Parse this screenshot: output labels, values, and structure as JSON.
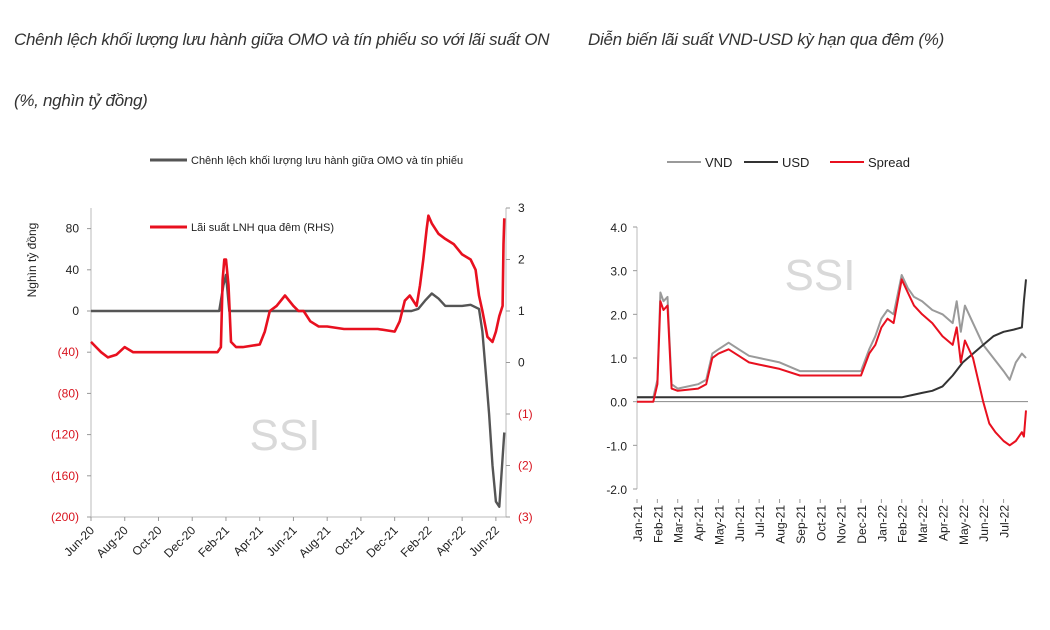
{
  "chart_data": [
    {
      "type": "line",
      "title": "Chênh lệch khối lượng lưu hành giữa OMO và tín phiếu so với lãi suất ON",
      "subtitle": "(%, nghìn tỷ đồng)",
      "ylabel": "Nghìn tỷ đồng",
      "ylim": [
        -200,
        100
      ],
      "y_ticks": [
        "80",
        "40",
        "0",
        "(40)",
        "(80)",
        "(120)",
        "(160)",
        "(200)"
      ],
      "y_tick_values": [
        80,
        40,
        0,
        -40,
        -80,
        -120,
        -160,
        -200
      ],
      "y2lim": [
        -3,
        3
      ],
      "y2_ticks": [
        "3",
        "2",
        "1",
        "0",
        "(1)",
        "(2)",
        "(3)"
      ],
      "y2_tick_values": [
        3,
        2,
        1,
        0,
        -1,
        -2,
        -3
      ],
      "x_ticks": [
        "Jun-20",
        "Aug-20",
        "Oct-20",
        "Dec-20",
        "Feb-21",
        "Apr-21",
        "Jun-21",
        "Aug-21",
        "Oct-21",
        "Dec-21",
        "Feb-22",
        "Apr-22",
        "Jun-22"
      ],
      "x": [
        0,
        2,
        4,
        6,
        8,
        10,
        12,
        14,
        16,
        18,
        20,
        22,
        24
      ],
      "watermark": "SSI",
      "series": [
        {
          "name": "Chênh lệch khối lượng lưu hành giữa OMO và tín phiếu",
          "axis": "left",
          "color": "#555555",
          "x": [
            0,
            7.6,
            7.85,
            8.0,
            8.2,
            8.5,
            9,
            10,
            11,
            12,
            13,
            14,
            15,
            16,
            17,
            18,
            18.5,
            19,
            19.4,
            19.8,
            20.2,
            20.6,
            21,
            21.5,
            22,
            22.5,
            23,
            23.2,
            23.4,
            23.6,
            23.8,
            24.0,
            24.2,
            24.5
          ],
          "values": [
            0,
            0,
            25,
            35,
            0,
            0,
            0,
            0,
            0,
            0,
            0,
            0,
            0,
            0,
            0,
            0,
            0,
            0,
            2,
            10,
            17,
            12,
            5,
            5,
            5,
            6,
            2,
            -20,
            -60,
            -100,
            -150,
            -185,
            -190,
            -118
          ]
        },
        {
          "name": "Lãi suất LNH qua đêm (RHS)",
          "axis": "right",
          "color": "#e8101f",
          "x": [
            0,
            0.3,
            0.6,
            1,
            1.5,
            2,
            2.5,
            3,
            4,
            5,
            6,
            7,
            7.5,
            7.7,
            7.8,
            7.9,
            8.0,
            8.15,
            8.3,
            8.6,
            9,
            10,
            10.3,
            10.6,
            11,
            11.5,
            12,
            12.3,
            12.6,
            13,
            13.5,
            14,
            15,
            16,
            17,
            18,
            18.3,
            18.6,
            18.9,
            19.3,
            19.5,
            19.7,
            19.9,
            20,
            20.2,
            20.6,
            21,
            21.5,
            22,
            22.5,
            22.8,
            23,
            23.2,
            23.5,
            23.8,
            24,
            24.2,
            24.4,
            24.45,
            24.5
          ],
          "values": [
            0.4,
            0.3,
            0.2,
            0.1,
            0.15,
            0.3,
            0.2,
            0.2,
            0.2,
            0.2,
            0.2,
            0.2,
            0.2,
            0.3,
            1.6,
            2.0,
            2.0,
            1.5,
            0.4,
            0.3,
            0.3,
            0.35,
            0.6,
            1.0,
            1.1,
            1.3,
            1.1,
            1.0,
            1.0,
            0.8,
            0.7,
            0.7,
            0.65,
            0.65,
            0.65,
            0.6,
            0.8,
            1.2,
            1.3,
            1.1,
            1.5,
            2.0,
            2.6,
            2.85,
            2.7,
            2.5,
            2.4,
            2.3,
            2.1,
            2.0,
            1.8,
            1.3,
            1.0,
            0.5,
            0.4,
            0.6,
            0.9,
            1.1,
            2.3,
            2.8
          ]
        }
      ]
    },
    {
      "type": "line",
      "title": "Diễn biến lãi suất VND-USD kỳ hạn qua đêm (%)",
      "ylim": [
        -2.0,
        4.0
      ],
      "y_ticks": [
        "4.0",
        "3.0",
        "2.0",
        "1.0",
        "0.0",
        "-1.0",
        "-2.0"
      ],
      "y_tick_values": [
        4,
        3,
        2,
        1,
        0,
        -1,
        -2
      ],
      "x_ticks": [
        "Jan-21",
        "Feb-21",
        "Mar-21",
        "Apr-21",
        "May-21",
        "Jun-21",
        "Jul-21",
        "Aug-21",
        "Sep-21",
        "Oct-21",
        "Nov-21",
        "Dec-21",
        "Jan-22",
        "Feb-22",
        "Mar-22",
        "Apr-22",
        "May-22",
        "Jun-22",
        "Jul-22"
      ],
      "x": [
        0,
        1,
        2,
        3,
        4,
        5,
        6,
        7,
        8,
        9,
        10,
        11,
        12,
        13,
        14,
        15,
        16,
        17,
        18
      ],
      "watermark": "SSI",
      "legend": [
        "VND",
        "USD",
        "Spread"
      ],
      "series": [
        {
          "name": "VND",
          "color": "#9a9a9a",
          "x": [
            0,
            0.8,
            1.0,
            1.15,
            1.3,
            1.5,
            1.7,
            2,
            3,
            3.4,
            3.7,
            4,
            4.5,
            5,
            5.5,
            6,
            7,
            8,
            9,
            10,
            11,
            11.4,
            11.7,
            12,
            12.3,
            12.6,
            13,
            13.3,
            13.6,
            14,
            14.5,
            15,
            15.5,
            15.7,
            15.9,
            16.1,
            16.5,
            17,
            17.5,
            18,
            18.3,
            18.6,
            18.9,
            19.1
          ],
          "values": [
            0.1,
            0.1,
            0.5,
            2.5,
            2.3,
            2.4,
            0.4,
            0.3,
            0.4,
            0.5,
            1.1,
            1.2,
            1.35,
            1.2,
            1.05,
            1.0,
            0.9,
            0.7,
            0.7,
            0.7,
            0.7,
            1.2,
            1.5,
            1.9,
            2.1,
            2.0,
            2.9,
            2.6,
            2.4,
            2.3,
            2.1,
            2.0,
            1.8,
            2.3,
            1.6,
            2.2,
            1.8,
            1.3,
            1.0,
            0.7,
            0.5,
            0.9,
            1.1,
            1.0
          ]
        },
        {
          "name": "USD",
          "color": "#333333",
          "x": [
            0,
            13,
            13.5,
            14,
            14.5,
            15,
            15.5,
            16,
            16.5,
            17,
            17.5,
            18,
            18.5,
            18.9,
            19.0,
            19.1
          ],
          "values": [
            0.1,
            0.1,
            0.15,
            0.2,
            0.25,
            0.35,
            0.6,
            0.9,
            1.1,
            1.3,
            1.5,
            1.6,
            1.65,
            1.7,
            2.3,
            2.8
          ]
        },
        {
          "name": "Spread",
          "color": "#e8101f",
          "x": [
            0,
            0.8,
            1.0,
            1.15,
            1.3,
            1.5,
            1.7,
            2,
            3,
            3.4,
            3.7,
            4,
            4.5,
            5,
            5.5,
            6,
            7,
            8,
            9,
            10,
            11,
            11.4,
            11.7,
            12,
            12.3,
            12.6,
            13,
            13.3,
            13.6,
            14,
            14.5,
            15,
            15.5,
            15.7,
            15.9,
            16.1,
            16.5,
            17,
            17.3,
            17.6,
            18,
            18.3,
            18.6,
            18.9,
            19.0,
            19.1
          ],
          "values": [
            0.0,
            0.0,
            0.4,
            2.3,
            2.1,
            2.2,
            0.3,
            0.25,
            0.3,
            0.4,
            1.0,
            1.1,
            1.2,
            1.05,
            0.9,
            0.85,
            0.75,
            0.6,
            0.6,
            0.6,
            0.6,
            1.1,
            1.3,
            1.7,
            1.9,
            1.8,
            2.8,
            2.5,
            2.2,
            2.0,
            1.8,
            1.5,
            1.3,
            1.7,
            0.9,
            1.4,
            1.0,
            0.0,
            -0.5,
            -0.7,
            -0.9,
            -1.0,
            -0.9,
            -0.7,
            -0.8,
            -0.2
          ]
        }
      ]
    }
  ]
}
